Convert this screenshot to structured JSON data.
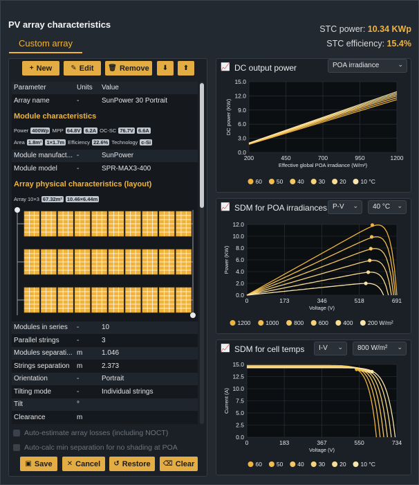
{
  "title": "PV array characteristics",
  "tab": "Custom array",
  "stc_power_label": "STC power:",
  "stc_power_value": "10.34 KWp",
  "stc_eff_label": "STC efficiency:",
  "stc_eff_value": "15.4%",
  "toolbar": {
    "new": "New",
    "edit": "Edit",
    "remove": "Remove"
  },
  "table": {
    "headers": [
      "Parameter",
      "Units",
      "Value"
    ],
    "array_name": [
      "Array name",
      "-",
      "SunPower 30 Portrait"
    ],
    "module_section": "Module characteristics",
    "module_line1": {
      "power_label": "Power",
      "power": "400Wp",
      "mpp_label": "MPP",
      "mpp_v": "64.8V",
      "mpp_a": "6.2A",
      "ocsc_label": "OC-SC",
      "oc_v": "76.7V",
      "sc_a": "6.6A"
    },
    "module_line2": {
      "area_label": "Area",
      "area": "1.8m²",
      "dims": "1×1.7m",
      "eff_label": "Efficiency",
      "eff": "22.6%",
      "tech_label": "Technology",
      "tech": "c-Si"
    },
    "manufacturer": [
      "Module manufact...",
      "-",
      "SunPower"
    ],
    "model": [
      "Module model",
      "-",
      "SPR-MAX3-400"
    ],
    "array_section": "Array physical characteristics (layout)",
    "array_line": {
      "label": "Array 10×3",
      "area": "67.32m²",
      "dims": "10.46×6.44m"
    },
    "rows": [
      [
        "Modules in series",
        "-",
        "10"
      ],
      [
        "Parallel strings",
        "-",
        "3"
      ],
      [
        "Modules separati...",
        "m",
        "1.046"
      ],
      [
        "Strings separation",
        "m",
        "2.373"
      ],
      [
        "Orientation",
        "-",
        "Portrait"
      ],
      [
        "Tilting mode",
        "-",
        "Individual strings"
      ],
      [
        "Tilt",
        "°",
        ""
      ],
      [
        "Clearance",
        "m",
        ""
      ]
    ]
  },
  "checkboxes": [
    "Auto-estimate array losses (including NOCT)",
    "Auto-calc min separation for no shading at POA"
  ],
  "footer": {
    "save": "Save",
    "cancel": "Cancel",
    "restore": "Restore",
    "clear": "Clear"
  },
  "colors": {
    "accent": "#f0b43c",
    "bg": "#222931",
    "panel": "#1b2027"
  },
  "chart_data": [
    {
      "type": "line",
      "title": "DC output power",
      "selector": "POA irradiance",
      "xlabel": "Effective global POA irradiance (W/m²)",
      "ylabel": "DC power (KW)",
      "xlim": [
        200,
        1200
      ],
      "ylim": [
        0,
        15
      ],
      "xticks": [
        200,
        450,
        700,
        950,
        1200
      ],
      "yticks": [
        0.0,
        3.0,
        6.0,
        9.0,
        12.0,
        15.0
      ],
      "legend": [
        "60",
        "50",
        "40",
        "30",
        "20",
        "10 °C"
      ],
      "series": [
        {
          "name": "60",
          "x": [
            200,
            1200
          ],
          "y": [
            1.7,
            11.2
          ]
        },
        {
          "name": "50",
          "x": [
            200,
            1200
          ],
          "y": [
            1.8,
            11.6
          ]
        },
        {
          "name": "40",
          "x": [
            200,
            1200
          ],
          "y": [
            1.85,
            12.0
          ]
        },
        {
          "name": "30",
          "x": [
            200,
            1200
          ],
          "y": [
            1.9,
            12.3
          ]
        },
        {
          "name": "20",
          "x": [
            200,
            1200
          ],
          "y": [
            1.95,
            12.6
          ]
        },
        {
          "name": "10 °C",
          "x": [
            200,
            1200
          ],
          "y": [
            2.0,
            12.9
          ]
        }
      ]
    },
    {
      "type": "line",
      "title": "SDM for POA irradiances",
      "selector1": "P-V",
      "selector2": "40 °C",
      "xlabel": "Voltage (V)",
      "ylabel": "Power (KW)",
      "xlim": [
        0,
        691
      ],
      "ylim": [
        0,
        12
      ],
      "xticks": [
        0,
        173,
        346,
        518,
        691
      ],
      "xtick_labels": [
        "0",
        "173",
        "346",
        "518",
        "691"
      ],
      "yticks": [
        0.0,
        2.0,
        4.0,
        6.0,
        8.0,
        10.0,
        12.0
      ],
      "legend": [
        "1200",
        "1000",
        "800",
        "600",
        "400",
        "200 W/m²"
      ],
      "series": [
        {
          "name": "1200",
          "vmp": 578,
          "pmp": 11.9,
          "voc": 691
        },
        {
          "name": "1000",
          "vmp": 575,
          "pmp": 9.9,
          "voc": 684
        },
        {
          "name": "800",
          "vmp": 571,
          "pmp": 7.9,
          "voc": 676
        },
        {
          "name": "600",
          "vmp": 566,
          "pmp": 5.9,
          "voc": 666
        },
        {
          "name": "400",
          "vmp": 559,
          "pmp": 3.9,
          "voc": 652
        },
        {
          "name": "200",
          "vmp": 548,
          "pmp": 2.0,
          "voc": 630
        }
      ]
    },
    {
      "type": "line",
      "title": "SDM for cell temps",
      "selector1": "I-V",
      "selector2": "800 W/m²",
      "xlabel": "Voltage (V)",
      "ylabel": "Current (A)",
      "xlim": [
        0,
        734
      ],
      "ylim": [
        0,
        15
      ],
      "xticks": [
        0,
        183,
        367,
        550,
        734
      ],
      "xtick_labels": [
        "0",
        "183",
        "367",
        "550",
        "734"
      ],
      "yticks": [
        0.0,
        2.5,
        5.0,
        7.5,
        10.0,
        12.5,
        15.0
      ],
      "legend": [
        "60",
        "50",
        "40",
        "30",
        "20",
        "10 °C"
      ],
      "series": [
        {
          "name": "60",
          "vmp": 537,
          "imp": 14.0,
          "isc": 14.8,
          "voc": 634
        },
        {
          "name": "50",
          "vmp": 552,
          "imp": 13.9,
          "isc": 14.7,
          "voc": 652
        },
        {
          "name": "40",
          "vmp": 567,
          "imp": 13.8,
          "isc": 14.6,
          "voc": 670
        },
        {
          "name": "30",
          "vmp": 582,
          "imp": 13.7,
          "isc": 14.5,
          "voc": 688
        },
        {
          "name": "20",
          "vmp": 597,
          "imp": 13.6,
          "isc": 14.4,
          "voc": 707
        },
        {
          "name": "10 °C",
          "vmp": 612,
          "imp": 13.5,
          "isc": 14.3,
          "voc": 726
        }
      ]
    }
  ]
}
